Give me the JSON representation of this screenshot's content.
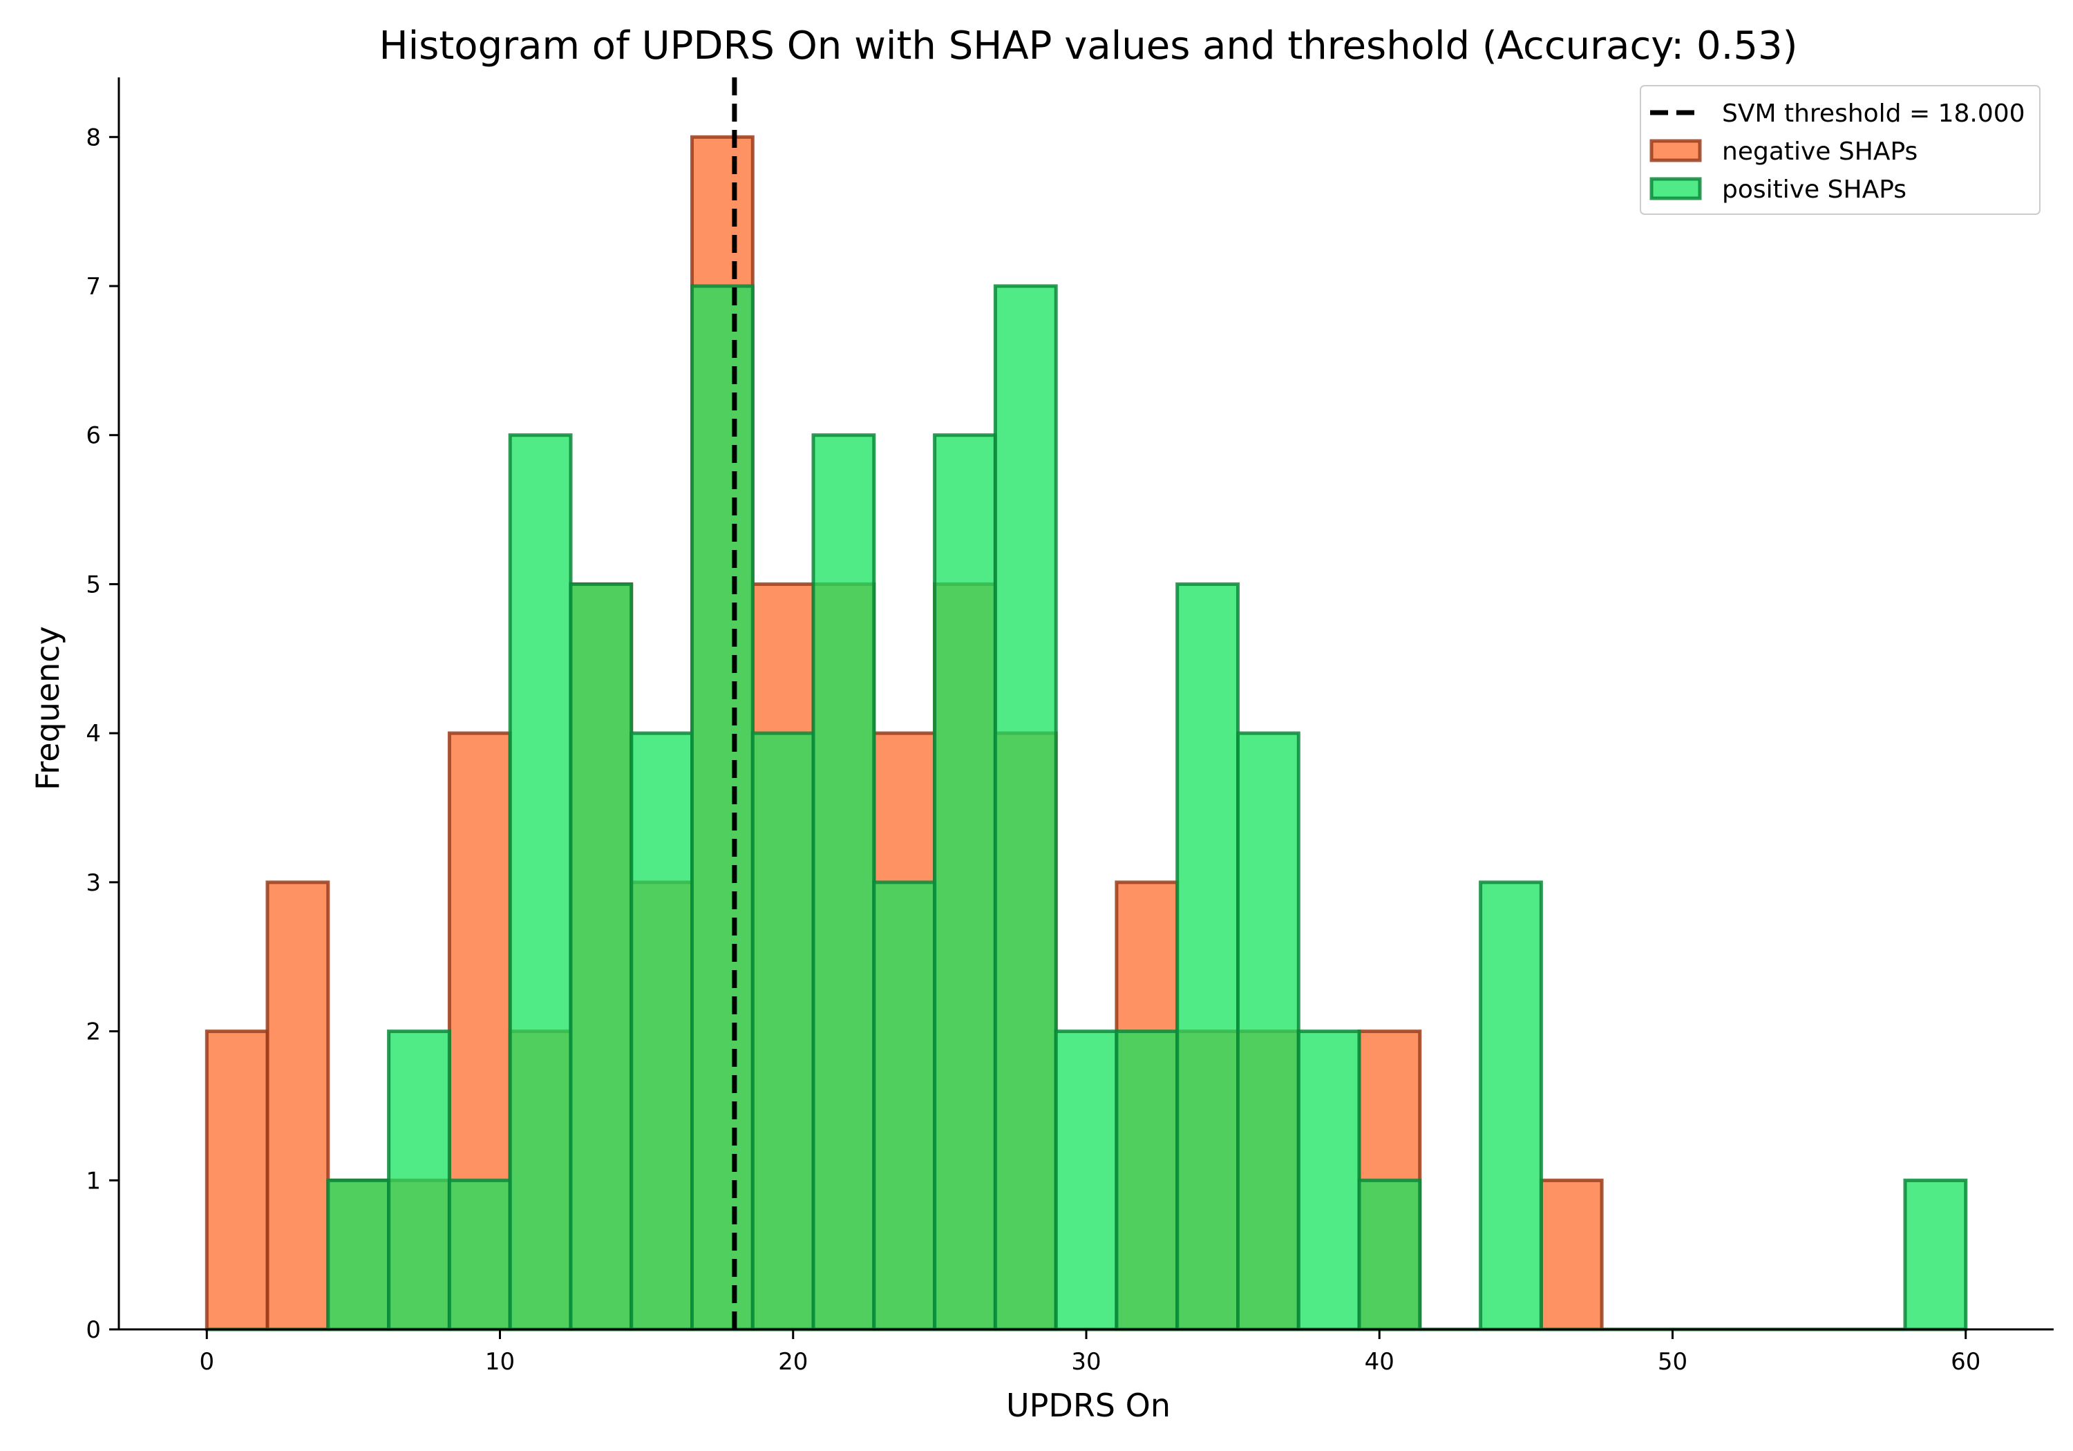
{
  "chart_data": {
    "type": "bar",
    "title": "Histogram of UPDRS On with SHAP values and threshold (Accuracy: 0.53)",
    "xlabel": "UPDRS On",
    "ylabel": "Frequency",
    "xlim": [
      -3,
      63
    ],
    "ylim": [
      0,
      8.4
    ],
    "xticks": [
      0,
      10,
      20,
      30,
      40,
      50,
      60
    ],
    "yticks": [
      0,
      1,
      2,
      3,
      4,
      5,
      6,
      7,
      8
    ],
    "bins": {
      "start": 0,
      "width": 2.069,
      "count": 29
    },
    "threshold": {
      "value": 18.0,
      "label": "SVM threshold = 18.000",
      "color": "#000000"
    },
    "series": [
      {
        "name": "negative SHAPs",
        "fill": "#ff6d2e",
        "edge": "#9a3c1b",
        "values": [
          2,
          3,
          1,
          1,
          4,
          2,
          5,
          3,
          8,
          5,
          5,
          4,
          5,
          4,
          0,
          3,
          2,
          2,
          0,
          2,
          0,
          0,
          1,
          0,
          0,
          0,
          0,
          0,
          0
        ]
      },
      {
        "name": "positive SHAPs",
        "fill": "#15e35e",
        "edge": "#0a8a3a",
        "values": [
          0,
          0,
          1,
          2,
          1,
          6,
          5,
          4,
          7,
          4,
          6,
          3,
          6,
          7,
          2,
          2,
          5,
          4,
          2,
          1,
          0,
          3,
          0,
          0,
          0,
          0,
          0,
          0,
          1
        ]
      }
    ],
    "legend": "top-right",
    "grid": false
  }
}
